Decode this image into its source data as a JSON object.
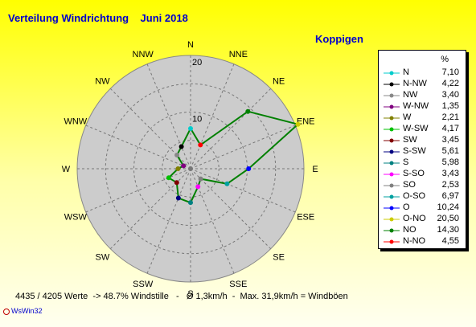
{
  "title": "Verteilung Windrichtung    Juni 2018",
  "station": "Koppigen",
  "footer": "4435 / 4205 Werte  -> 48.7% Windstille   -   Ø 1,3km/h  -  Max. 31,9km/h = Windböen",
  "brand": "WsWin32",
  "legend_unit": "%",
  "colors": {
    "ring_fill": "#cccccc",
    "ring_stroke": "#888888",
    "series_line": "#008000"
  },
  "chart_data": {
    "type": "radar",
    "r_ticks": [
      "10",
      "20"
    ],
    "rlim": [
      0,
      20
    ],
    "grid": true,
    "compass_labels": [
      "N",
      "NNE",
      "NE",
      "ENE",
      "E",
      "ESE",
      "SE",
      "SSE",
      "S",
      "SSW",
      "SW",
      "WSW",
      "W",
      "WNW",
      "NW",
      "NNW"
    ],
    "directions": [
      "N",
      "N-NW",
      "NW",
      "W-NW",
      "W",
      "W-SW",
      "SW",
      "S-SW",
      "S",
      "S-SO",
      "SO",
      "O-SO",
      "O",
      "O-NO",
      "NO",
      "N-NO"
    ],
    "values": [
      7.1,
      4.22,
      3.4,
      1.35,
      2.21,
      4.17,
      3.45,
      5.61,
      5.98,
      3.43,
      2.53,
      6.97,
      10.24,
      20.5,
      14.3,
      4.55
    ],
    "value_labels": [
      "7,10",
      "4,22",
      "3,40",
      "1,35",
      "2,21",
      "4,17",
      "3,45",
      "5,61",
      "5,98",
      "3,43",
      "2,53",
      "6,97",
      "10,24",
      "20,50",
      "14,30",
      "4,55"
    ],
    "marker_colors": [
      "#00cccc",
      "#000000",
      "#888888",
      "#800080",
      "#808000",
      "#00c000",
      "#800000",
      "#000080",
      "#008080",
      "#ff00ff",
      "#808080",
      "#00a0a0",
      "#0000ff",
      "#cccc00",
      "#008000",
      "#ff0000"
    ],
    "legend_position": "right"
  }
}
